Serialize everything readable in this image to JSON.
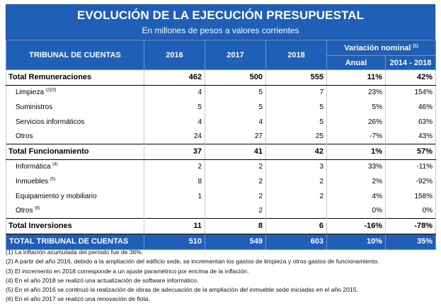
{
  "title": "EVOLUCIÓN DE LA EJECUCIÓN PRESUPUESTAL",
  "subtitle": "En millones de pesos a valores corrientes",
  "header": {
    "entity": "TRIBUNAL DE CUENTAS",
    "y2016": "2016",
    "y2017": "2017",
    "y2018": "2018",
    "variation": "Variación nominal",
    "variation_note": "(1)",
    "annual": "Anual",
    "range": "2014 - 2018"
  },
  "rows": [
    {
      "label": "Total Remuneraciones",
      "note": "",
      "v2016": "462",
      "v2017": "500",
      "v2018": "555",
      "anual": "11%",
      "range": "42%"
    },
    {
      "label": "Limpieza",
      "note": "(2)(3)",
      "v2016": "4",
      "v2017": "5",
      "v2018": "7",
      "anual": "23%",
      "range": "154%"
    },
    {
      "label": "Suministros",
      "note": "",
      "v2016": "5",
      "v2017": "5",
      "v2018": "5",
      "anual": "5%",
      "range": "46%"
    },
    {
      "label": "Servicios informáticos",
      "note": "",
      "v2016": "4",
      "v2017": "4",
      "v2018": "5",
      "anual": "26%",
      "range": "63%"
    },
    {
      "label": "Otros",
      "note": "",
      "v2016": "24",
      "v2017": "27",
      "v2018": "25",
      "anual": "-7%",
      "range": "43%"
    },
    {
      "label": "Total Funcionamiento",
      "note": "",
      "v2016": "37",
      "v2017": "41",
      "v2018": "42",
      "anual": "1%",
      "range": "57%"
    },
    {
      "label": "Informática",
      "note": "(4)",
      "v2016": "2",
      "v2017": "2",
      "v2018": "3",
      "anual": "33%",
      "range": "-11%"
    },
    {
      "label": "Inmuebles",
      "note": "(5)",
      "v2016": "8",
      "v2017": "2",
      "v2018": "2",
      "anual": "2%",
      "range": "-92%"
    },
    {
      "label": "Equipamiento y mobiliario",
      "note": "",
      "v2016": "1",
      "v2017": "2",
      "v2018": "2",
      "anual": "4%",
      "range": "158%"
    },
    {
      "label": "Otros",
      "note": "(6)",
      "v2016": "",
      "v2017": "2",
      "v2018": "",
      "anual": "0%",
      "range": "0%"
    },
    {
      "label": "Total Inversiones",
      "note": "",
      "v2016": "11",
      "v2017": "8",
      "v2018": "6",
      "anual": "-16%",
      "range": "-78%"
    },
    {
      "label": "TOTAL TRIBUNAL DE CUENTAS",
      "note": "",
      "v2016": "510",
      "v2017": "549",
      "v2018": "603",
      "anual": "10%",
      "range": "35%"
    }
  ],
  "notes": [
    "(1) La inflación acumulada del período fue de 36%.",
    "(2) A partir del año 2016, debido a la ampliación del edificio sede, se incrementan los gastos de limpieza y otros gastos de funcionamiento.",
    "(3) El incremento en 2018 corresponde a un ajuste paramétrico por encima de la inflación.",
    "(4) En el año 2018 se realizó una actualización de software informático.",
    "(5) En el año 2016 se continuó la realización de obras de adecuación de la ampliación del inmueble sede iniciadas en el año 2015.",
    "(6) En el año 2017 se realizó una renovación de flota."
  ]
}
